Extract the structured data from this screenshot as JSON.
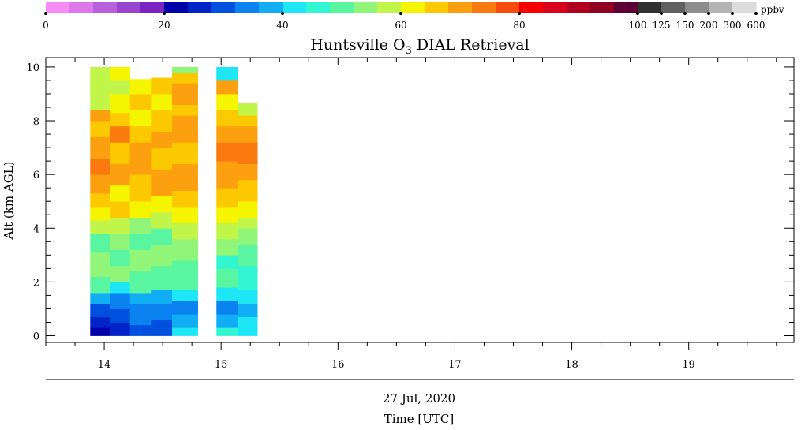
{
  "chart_data": {
    "type": "heatmap",
    "title": "Huntsville O",
    "title_subscript": "3",
    "title_suffix": " DIAL Retrieval",
    "ylabel": "Alt (km AGL)",
    "xlabel_date": "27 Jul, 2020",
    "xlabel": "Time [UTC]",
    "xlim": [
      13.5,
      19.9
    ],
    "ylim": [
      -0.25,
      10.35
    ],
    "x_ticks": [
      "14",
      "15",
      "16",
      "17",
      "18",
      "19"
    ],
    "y_ticks": [
      "0",
      "2",
      "4",
      "6",
      "8",
      "10"
    ],
    "colorbar": {
      "unit": "ppbv",
      "tick_labels": [
        "0",
        "20",
        "40",
        "60",
        "80",
        "100",
        "125",
        "150",
        "200",
        "300",
        "600"
      ],
      "colors": [
        "#f78cf7",
        "#dc78ea",
        "#b860db",
        "#9844cf",
        "#7a24c1",
        "#0000a8",
        "#0024c8",
        "#0050e0",
        "#0a82f0",
        "#12aef5",
        "#1ee6f5",
        "#32f5d2",
        "#5af5a0",
        "#90f578",
        "#c2f54a",
        "#f5f500",
        "#fcc800",
        "#fca010",
        "#fa7a10",
        "#f84a0c",
        "#f80000",
        "#d8001a",
        "#b00020",
        "#900020",
        "#5c0036",
        "#303030",
        "#606060",
        "#8c8c8c",
        "#b4b4b4",
        "#dcdcdc"
      ]
    },
    "profiles": [
      {
        "t": [
          13.88,
          14.05
        ],
        "top": 10.0,
        "layers": [
          [
            0,
            0.3,
            5
          ],
          [
            0.3,
            0.7,
            6
          ],
          [
            0.7,
            1.2,
            7
          ],
          [
            1.2,
            1.6,
            9
          ],
          [
            1.6,
            2.2,
            12
          ],
          [
            2.2,
            3.1,
            13
          ],
          [
            3.1,
            3.8,
            12
          ],
          [
            3.8,
            4.3,
            14
          ],
          [
            4.3,
            4.8,
            15
          ],
          [
            4.8,
            5.3,
            16
          ],
          [
            5.3,
            6.0,
            17
          ],
          [
            6.0,
            6.6,
            18
          ],
          [
            6.6,
            7.4,
            17
          ],
          [
            7.4,
            8.0,
            16
          ],
          [
            8.0,
            8.4,
            17
          ],
          [
            8.4,
            9.2,
            14
          ],
          [
            9.2,
            10.0,
            14
          ]
        ]
      },
      {
        "t": [
          14.05,
          14.22
        ],
        "top": 10.0,
        "layers": [
          [
            0,
            0.5,
            6
          ],
          [
            0.5,
            1.0,
            7
          ],
          [
            1.0,
            1.6,
            8
          ],
          [
            1.6,
            2.0,
            10
          ],
          [
            2.0,
            2.6,
            13
          ],
          [
            2.6,
            3.2,
            12
          ],
          [
            3.2,
            3.8,
            13
          ],
          [
            3.8,
            4.4,
            14
          ],
          [
            4.4,
            5.0,
            16
          ],
          [
            5.0,
            5.6,
            15
          ],
          [
            5.6,
            6.4,
            17
          ],
          [
            6.4,
            7.2,
            16
          ],
          [
            7.2,
            7.8,
            18
          ],
          [
            7.8,
            8.3,
            16
          ],
          [
            8.3,
            9.0,
            15
          ],
          [
            9.0,
            9.5,
            14
          ],
          [
            9.5,
            10.0,
            15
          ]
        ]
      },
      {
        "t": [
          14.22,
          14.4
        ],
        "top": 9.55,
        "layers": [
          [
            0,
            0.4,
            7
          ],
          [
            0.4,
            1.2,
            8
          ],
          [
            1.2,
            1.6,
            9
          ],
          [
            1.6,
            2.4,
            12
          ],
          [
            2.4,
            3.2,
            13
          ],
          [
            3.2,
            3.8,
            12
          ],
          [
            3.8,
            4.4,
            13
          ],
          [
            4.4,
            5.0,
            15
          ],
          [
            5.0,
            6.0,
            16
          ],
          [
            6.0,
            7.2,
            17
          ],
          [
            7.2,
            7.8,
            16
          ],
          [
            7.8,
            8.4,
            15
          ],
          [
            8.4,
            9.0,
            16
          ],
          [
            9.0,
            9.55,
            15
          ]
        ]
      },
      {
        "t": [
          14.4,
          14.58
        ],
        "top": 9.6,
        "layers": [
          [
            0,
            0.6,
            7
          ],
          [
            0.6,
            1.2,
            8
          ],
          [
            1.2,
            1.7,
            9
          ],
          [
            1.7,
            2.6,
            12
          ],
          [
            2.6,
            3.4,
            13
          ],
          [
            3.4,
            4.0,
            12
          ],
          [
            4.0,
            4.6,
            14
          ],
          [
            4.6,
            5.2,
            15
          ],
          [
            5.2,
            6.2,
            17
          ],
          [
            6.2,
            7.0,
            16
          ],
          [
            7.0,
            7.6,
            17
          ],
          [
            7.6,
            8.4,
            16
          ],
          [
            8.4,
            9.0,
            15
          ],
          [
            9.0,
            9.6,
            16
          ]
        ]
      },
      {
        "t": [
          14.58,
          14.8
        ],
        "top": 10.0,
        "layers": [
          [
            0,
            0.3,
            10
          ],
          [
            0.3,
            0.8,
            9
          ],
          [
            0.8,
            1.3,
            8
          ],
          [
            1.3,
            1.7,
            10
          ],
          [
            1.7,
            2.8,
            12
          ],
          [
            2.8,
            3.6,
            13
          ],
          [
            3.6,
            4.2,
            14
          ],
          [
            4.2,
            4.8,
            15
          ],
          [
            4.8,
            5.4,
            16
          ],
          [
            5.4,
            6.4,
            17
          ],
          [
            6.4,
            7.2,
            16
          ],
          [
            7.2,
            8.2,
            17
          ],
          [
            8.2,
            8.6,
            16
          ],
          [
            8.6,
            9.4,
            17
          ],
          [
            9.4,
            9.8,
            16
          ],
          [
            9.8,
            10.0,
            13
          ]
        ]
      },
      {
        "t": [
          14.96,
          15.14
        ],
        "top": 10.0,
        "layers": [
          [
            0,
            0.3,
            11
          ],
          [
            0.3,
            0.8,
            9
          ],
          [
            0.8,
            1.3,
            8
          ],
          [
            1.3,
            1.8,
            10
          ],
          [
            1.8,
            2.5,
            12
          ],
          [
            2.5,
            3.0,
            11
          ],
          [
            3.0,
            3.6,
            13
          ],
          [
            3.6,
            4.2,
            14
          ],
          [
            4.2,
            4.8,
            15
          ],
          [
            4.8,
            5.5,
            16
          ],
          [
            5.5,
            6.5,
            17
          ],
          [
            6.5,
            7.2,
            18
          ],
          [
            7.2,
            7.8,
            17
          ],
          [
            7.8,
            8.4,
            16
          ],
          [
            8.4,
            9.0,
            15
          ],
          [
            9.0,
            9.5,
            17
          ],
          [
            9.5,
            10.0,
            10
          ]
        ]
      },
      {
        "t": [
          15.14,
          15.31
        ],
        "top": 8.65,
        "layers": [
          [
            0,
            0.7,
            10
          ],
          [
            0.7,
            1.2,
            9
          ],
          [
            1.2,
            1.7,
            10
          ],
          [
            1.7,
            2.6,
            11
          ],
          [
            2.6,
            3.4,
            12
          ],
          [
            3.4,
            4.0,
            13
          ],
          [
            4.0,
            4.4,
            14
          ],
          [
            4.4,
            5.0,
            15
          ],
          [
            5.0,
            5.8,
            16
          ],
          [
            5.8,
            6.4,
            17
          ],
          [
            6.4,
            7.2,
            18
          ],
          [
            7.2,
            7.8,
            17
          ],
          [
            7.8,
            8.2,
            16
          ],
          [
            8.2,
            8.65,
            14
          ]
        ]
      }
    ]
  }
}
